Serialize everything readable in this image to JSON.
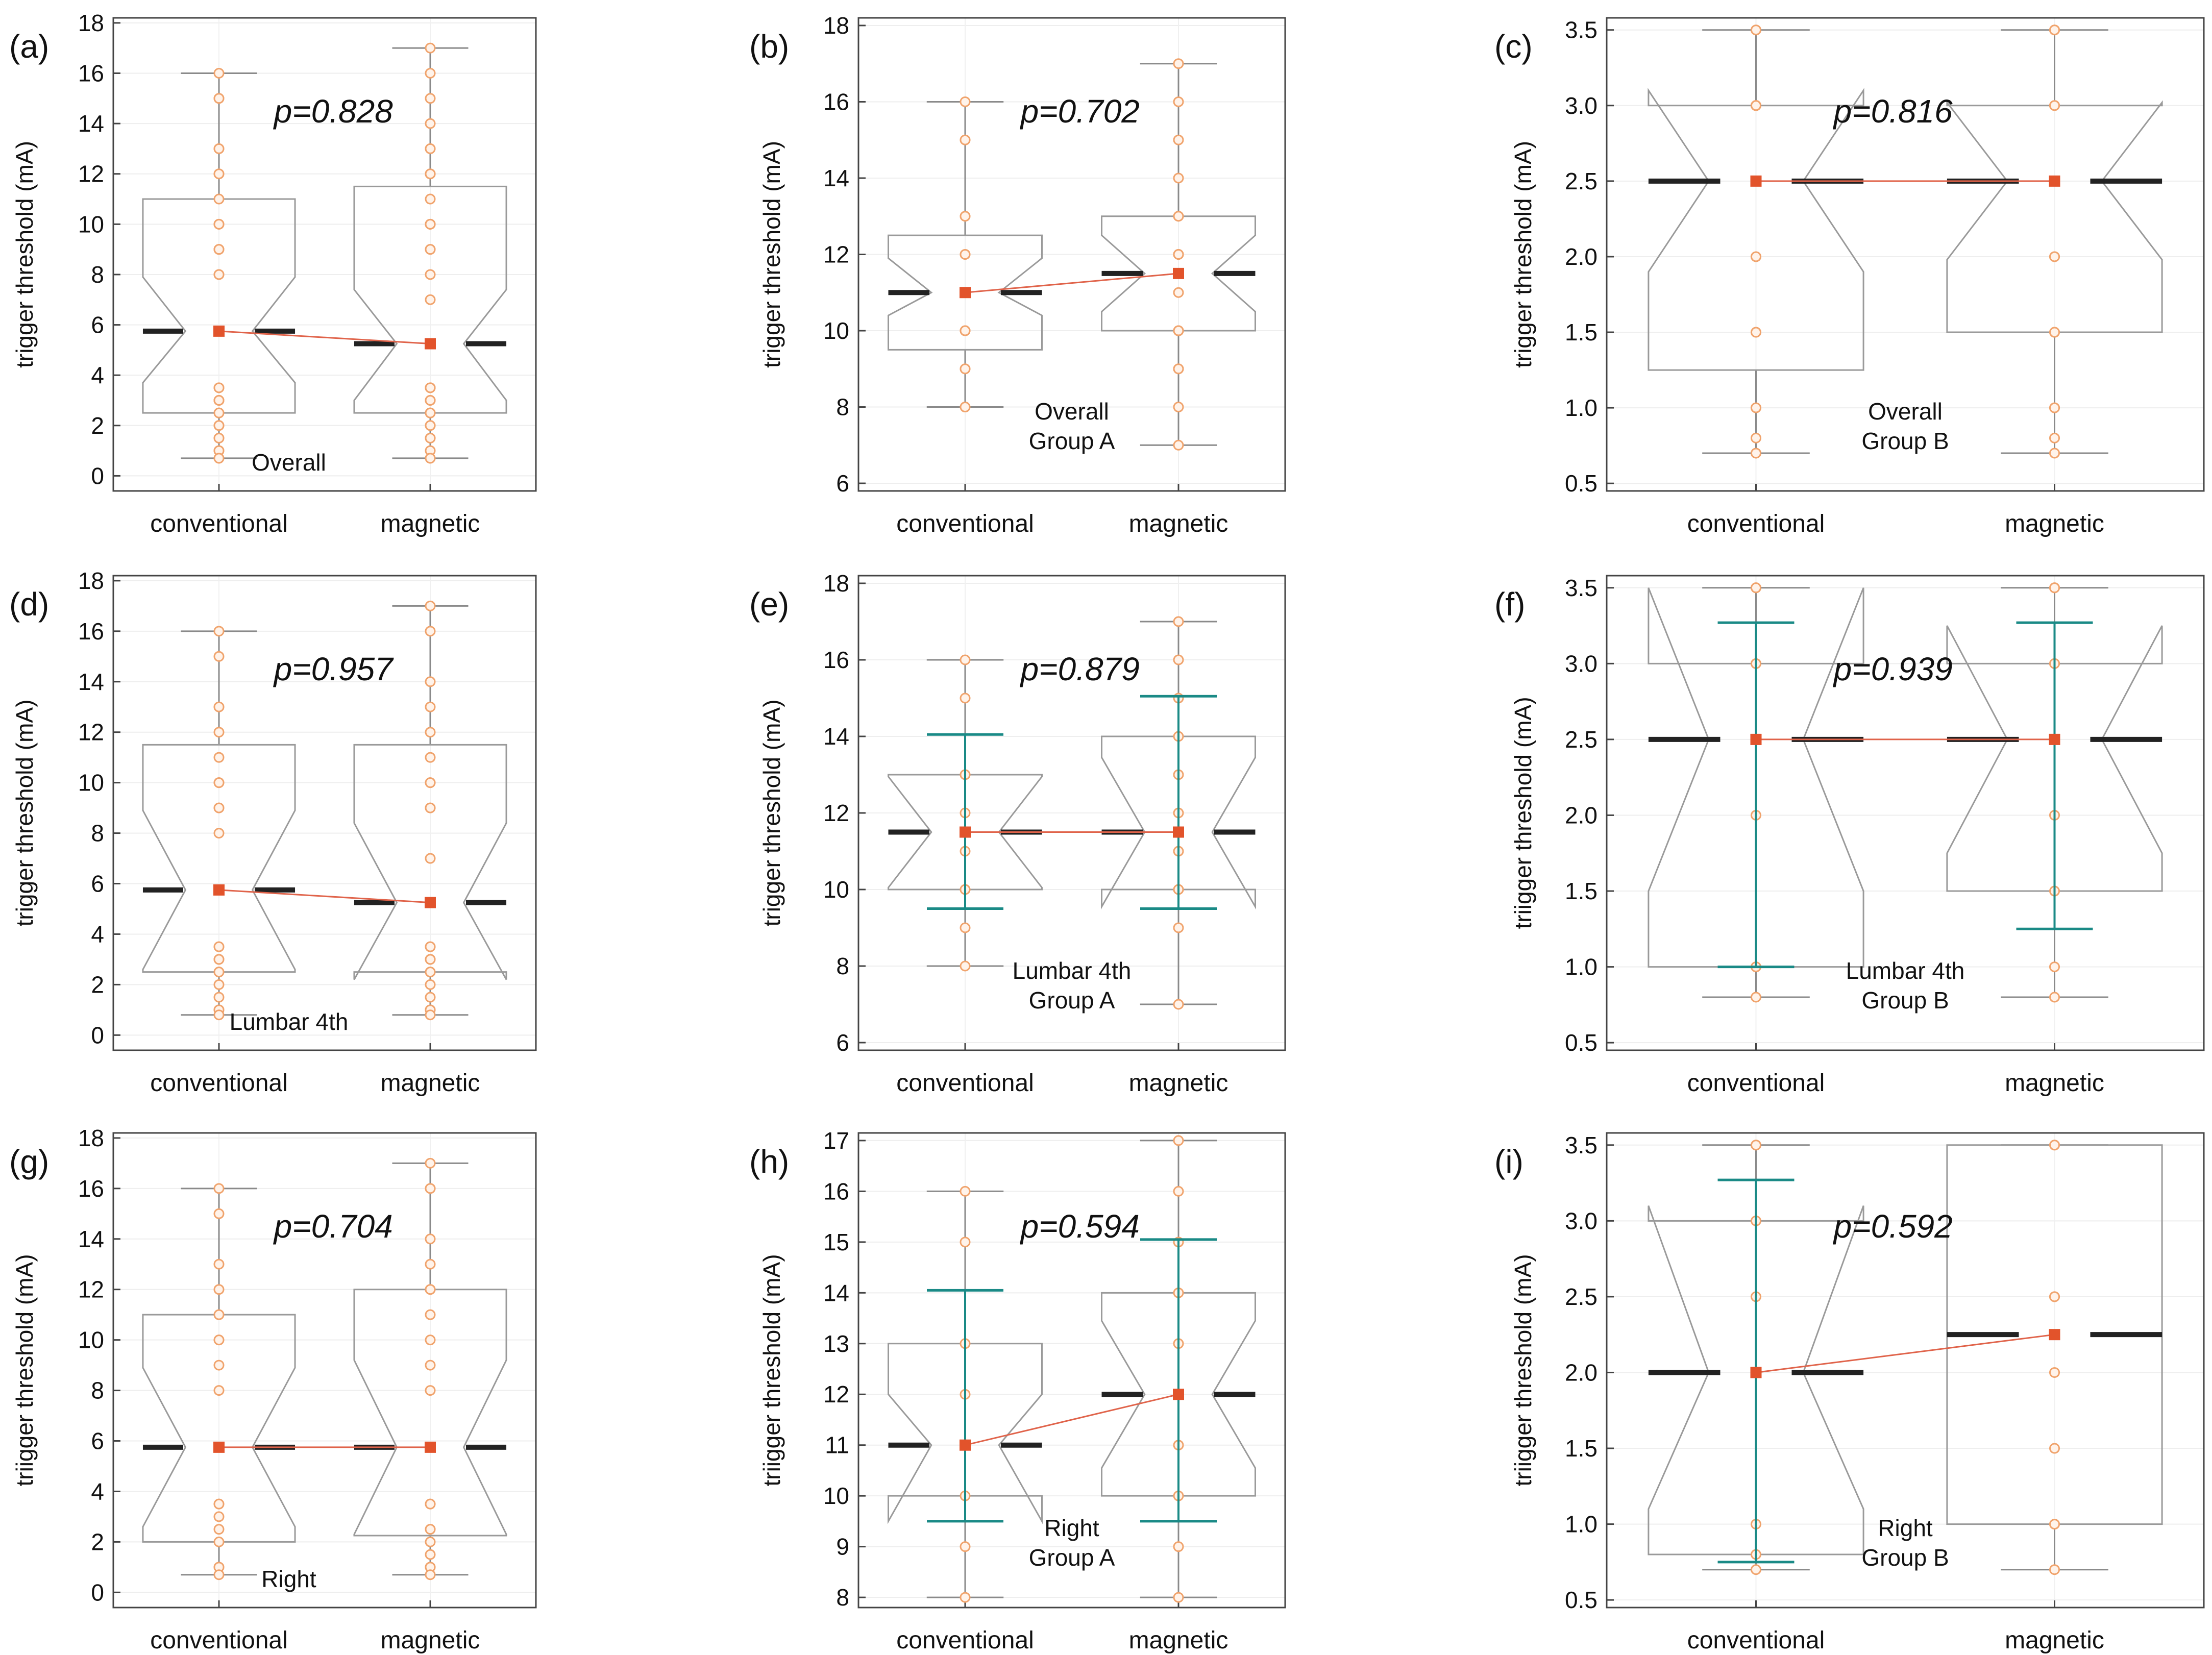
{
  "chart_data": [
    {
      "id": "a",
      "panel_label": "(a)",
      "type": "box",
      "categories": [
        "conventional",
        "magnetic"
      ],
      "ylabel": "trigger threshold (mA)",
      "ylim": [
        -0.6,
        18.2
      ],
      "yticks": [
        0,
        2,
        4,
        6,
        8,
        10,
        12,
        14,
        16,
        18
      ],
      "annotation": [
        "Overall"
      ],
      "p_value": "p=0.828",
      "series": [
        {
          "name": "conventional",
          "min": 0.7,
          "q1": 2.5,
          "median": 5.75,
          "q3": 11,
          "max": 16,
          "notch": [
            3.7,
            7.9
          ],
          "ci": null,
          "points": [
            16,
            15,
            15,
            13,
            13,
            12,
            12,
            11,
            10,
            10,
            10,
            9,
            9,
            9,
            8,
            8,
            3.5,
            3.5,
            3,
            3,
            3,
            3,
            2.5,
            2.5,
            2,
            2,
            1.5,
            1.5,
            1,
            1,
            0.7,
            0.7
          ]
        },
        {
          "name": "magnetic",
          "min": 0.7,
          "q1": 2.5,
          "median": 5.25,
          "q3": 11.5,
          "max": 17,
          "notch": [
            3.0,
            7.4
          ],
          "ci": null,
          "points": [
            17,
            16,
            15,
            14,
            13,
            13,
            12,
            12,
            12,
            11,
            10,
            10,
            10,
            10,
            9,
            9,
            8,
            7,
            3.5,
            3.5,
            3.5,
            3,
            3,
            3,
            2.5,
            2.5,
            2.5,
            2,
            2,
            1.5,
            1.5,
            1,
            0.7,
            0.7
          ]
        }
      ]
    },
    {
      "id": "b",
      "panel_label": "(b)",
      "type": "box",
      "categories": [
        "conventional",
        "magnetic"
      ],
      "ylabel": "trigger threshold (mA)",
      "ylim": [
        5.8,
        18.2
      ],
      "yticks": [
        6,
        8,
        10,
        12,
        14,
        16,
        18
      ],
      "annotation": [
        "Overall",
        "Group A"
      ],
      "p_value": "p=0.702",
      "series": [
        {
          "name": "conventional",
          "min": 8,
          "q1": 9.5,
          "median": 11,
          "q3": 12.5,
          "max": 16,
          "notch": [
            10.4,
            11.9
          ],
          "ci": null,
          "points": [
            16,
            15,
            15,
            13,
            13,
            12,
            12,
            11,
            10,
            10,
            10,
            10,
            9,
            9,
            8,
            8
          ]
        },
        {
          "name": "magnetic",
          "min": 7,
          "q1": 10,
          "median": 11.5,
          "q3": 13,
          "max": 17,
          "notch": [
            10.5,
            12.5
          ],
          "ci": null,
          "points": [
            17,
            16,
            15,
            14,
            13,
            13,
            12,
            12,
            12,
            11,
            10,
            10,
            10,
            10,
            9,
            9,
            8,
            7
          ]
        }
      ]
    },
    {
      "id": "c",
      "panel_label": "(c)",
      "type": "box",
      "categories": [
        "conventional",
        "magnetic"
      ],
      "ylabel": "trigger threshold (mA)",
      "ylim": [
        0.45,
        3.58
      ],
      "yticks": [
        0.5,
        1.0,
        1.5,
        2.0,
        2.5,
        3.0,
        3.5
      ],
      "annotation": [
        "Overall",
        "Group B"
      ],
      "p_value": "p=0.816",
      "series": [
        {
          "name": "conventional",
          "min": 0.7,
          "q1": 1.25,
          "median": 2.5,
          "q3": 3.0,
          "max": 3.5,
          "notch": [
            1.9,
            3.1
          ],
          "ci": null,
          "points": [
            3.5,
            3.5,
            3,
            3,
            3,
            3,
            3,
            3,
            2.5,
            2.5,
            2,
            2,
            1.5,
            1.5,
            1,
            1,
            0.8,
            0.7,
            0.7
          ]
        },
        {
          "name": "magnetic",
          "min": 0.7,
          "q1": 1.5,
          "median": 2.5,
          "q3": 3.0,
          "max": 3.5,
          "notch": [
            1.98,
            3.02
          ],
          "ci": null,
          "points": [
            3.5,
            3.5,
            3.5,
            3,
            3,
            3,
            2.5,
            2.5,
            2.5,
            2,
            2,
            1.5,
            1.5,
            1,
            1,
            0.8,
            0.7
          ]
        }
      ]
    },
    {
      "id": "d",
      "panel_label": "(d)",
      "type": "box",
      "categories": [
        "conventional",
        "magnetic"
      ],
      "ylabel": "trigger threshold (mA)",
      "ylim": [
        -0.6,
        18.2
      ],
      "yticks": [
        0,
        2,
        4,
        6,
        8,
        10,
        12,
        14,
        16,
        18
      ],
      "annotation": [
        "Lumbar 4th"
      ],
      "p_value": "p=0.957",
      "series": [
        {
          "name": "conventional",
          "min": 0.8,
          "q1": 2.5,
          "median": 5.75,
          "q3": 11.5,
          "max": 16,
          "notch": [
            2.6,
            8.9
          ],
          "ci": null,
          "points": [
            16,
            15,
            13,
            13,
            12,
            11,
            10,
            10,
            9,
            9,
            8,
            3.5,
            3.5,
            3,
            3,
            2.5,
            2.5,
            2,
            1.5,
            1,
            1,
            0.8
          ]
        },
        {
          "name": "magnetic",
          "min": 0.8,
          "q1": 2.5,
          "median": 5.25,
          "q3": 11.5,
          "max": 17,
          "notch": [
            2.2,
            8.4
          ],
          "ci": null,
          "points": [
            17,
            16,
            14,
            13,
            12,
            11,
            10,
            10,
            9,
            9,
            7,
            3.5,
            3.5,
            3,
            3,
            2.5,
            2.5,
            2,
            1.5,
            1,
            1,
            0.8
          ]
        }
      ]
    },
    {
      "id": "e",
      "panel_label": "(e)",
      "type": "box",
      "categories": [
        "conventional",
        "magnetic"
      ],
      "ylabel": "trigger threshold (mA)",
      "ylim": [
        5.8,
        18.2
      ],
      "yticks": [
        6,
        8,
        10,
        12,
        14,
        16,
        18
      ],
      "annotation": [
        "Lumbar 4th",
        "Group A"
      ],
      "p_value": "p=0.879",
      "series": [
        {
          "name": "conventional",
          "min": 8,
          "q1": 10,
          "median": 11.5,
          "q3": 13,
          "max": 16,
          "notch": [
            10.05,
            12.95
          ],
          "ci": [
            9.5,
            14.05
          ],
          "points": [
            16,
            15,
            13,
            13,
            12,
            11.5,
            11,
            10,
            10,
            9,
            8
          ]
        },
        {
          "name": "magnetic",
          "min": 7,
          "q1": 10,
          "median": 11.5,
          "q3": 14,
          "max": 17,
          "notch": [
            9.55,
            13.45
          ],
          "ci": [
            9.5,
            15.05
          ],
          "points": [
            17,
            16,
            15,
            14,
            13,
            12,
            11.5,
            11,
            10,
            10,
            9,
            7
          ]
        }
      ]
    },
    {
      "id": "f",
      "panel_label": "(f)",
      "type": "box",
      "categories": [
        "conventional",
        "magnetic"
      ],
      "ylabel": "triigger threshold (mA)",
      "ylim": [
        0.45,
        3.58
      ],
      "yticks": [
        0.5,
        1.0,
        1.5,
        2.0,
        2.5,
        3.0,
        3.5
      ],
      "annotation": [
        "Lumbar 4th",
        "Group B"
      ],
      "p_value": "p=0.939",
      "series": [
        {
          "name": "conventional",
          "min": 0.8,
          "q1": 1.0,
          "median": 2.5,
          "q3": 3.0,
          "max": 3.5,
          "notch": [
            1.5,
            3.5
          ],
          "ci": [
            1.0,
            3.27
          ],
          "points": [
            3.5,
            3.5,
            3,
            3,
            2.5,
            2,
            1,
            1,
            0.8
          ]
        },
        {
          "name": "magnetic",
          "min": 0.8,
          "q1": 1.5,
          "median": 2.5,
          "q3": 3.0,
          "max": 3.5,
          "notch": [
            1.75,
            3.25
          ],
          "ci": [
            1.25,
            3.27
          ],
          "points": [
            3.5,
            3.5,
            3,
            3,
            2.5,
            2,
            1.5,
            1,
            0.8
          ]
        }
      ]
    },
    {
      "id": "g",
      "panel_label": "(g)",
      "type": "box",
      "categories": [
        "conventional",
        "magnetic"
      ],
      "ylabel": "triigger threshold (mA)",
      "ylim": [
        -0.6,
        18.2
      ],
      "yticks": [
        0,
        2,
        4,
        6,
        8,
        10,
        12,
        14,
        16,
        18
      ],
      "annotation": [
        "Right"
      ],
      "p_value": "p=0.704",
      "series": [
        {
          "name": "conventional",
          "min": 0.7,
          "q1": 2.0,
          "median": 5.75,
          "q3": 11,
          "max": 16,
          "notch": [
            2.6,
            8.9
          ],
          "ci": null,
          "points": [
            16,
            15,
            13,
            12,
            11,
            11,
            10,
            10,
            9,
            8,
            3.5,
            3.5,
            3,
            2.5,
            2,
            1,
            1,
            0.7
          ]
        },
        {
          "name": "magnetic",
          "min": 0.7,
          "q1": 2.25,
          "median": 5.75,
          "q3": 12,
          "max": 17,
          "notch": [
            2.3,
            9.2
          ],
          "ci": null,
          "points": [
            17,
            16,
            16,
            14,
            13,
            12,
            12,
            11,
            10,
            9,
            8,
            3.5,
            3.5,
            2.5,
            2.5,
            2,
            1.5,
            1,
            1,
            0.7
          ]
        }
      ]
    },
    {
      "id": "h",
      "panel_label": "(h)",
      "type": "box",
      "categories": [
        "conventional",
        "magnetic"
      ],
      "ylabel": "triigger threshold (mA)",
      "ylim": [
        7.8,
        17.15
      ],
      "yticks": [
        8,
        9,
        10,
        11,
        12,
        13,
        14,
        15,
        16,
        17
      ],
      "annotation": [
        "Right",
        "Group A"
      ],
      "p_value": "p=0.594",
      "series": [
        {
          "name": "conventional",
          "min": 8,
          "q1": 10,
          "median": 11,
          "q3": 13,
          "max": 16,
          "notch": [
            9.5,
            12.0
          ],
          "ci": [
            9.5,
            14.05
          ],
          "points": [
            16,
            15,
            13,
            12,
            11,
            10,
            9,
            8
          ]
        },
        {
          "name": "magnetic",
          "min": 8,
          "q1": 10,
          "median": 12,
          "q3": 14,
          "max": 17,
          "notch": [
            10.55,
            13.45
          ],
          "ci": [
            9.5,
            15.05
          ],
          "points": [
            17,
            16,
            15,
            14,
            13,
            12,
            11,
            10,
            9,
            8
          ]
        }
      ]
    },
    {
      "id": "i",
      "panel_label": "(i)",
      "type": "box",
      "categories": [
        "conventional",
        "magnetic"
      ],
      "ylabel": "triigger threshold (mA)",
      "ylim": [
        0.45,
        3.58
      ],
      "yticks": [
        0.5,
        1.0,
        1.5,
        2.0,
        2.5,
        3.0,
        3.5
      ],
      "annotation": [
        "Right",
        "Group B"
      ],
      "p_value": "p=0.592",
      "series": [
        {
          "name": "conventional",
          "min": 0.7,
          "q1": 0.8,
          "median": 2.0,
          "q3": 3.0,
          "max": 3.5,
          "notch": [
            1.1,
            3.1
          ],
          "ci": [
            0.75,
            3.27
          ],
          "points": [
            3.5,
            3.5,
            3,
            2.5,
            2,
            1,
            0.8,
            0.7
          ]
        },
        {
          "name": "magnetic",
          "min": 0.7,
          "q1": 1.0,
          "median": 2.25,
          "q3": 3.5,
          "max": 3.5,
          "notch": [
            2.25,
            2.25
          ],
          "ci": null,
          "points": [
            3.5,
            3.5,
            2.5,
            2.5,
            2,
            1.5,
            1,
            1,
            0.7
          ]
        }
      ]
    }
  ],
  "colors": {
    "box_stroke": "#9a9a9a",
    "whisker": "#8a8a8a",
    "median": "#222222",
    "points": "#f0a36c",
    "point_fill": "#fff3ea",
    "mean": "#e2532b",
    "mean_line": "#e0634a",
    "ci": "#1a8a86",
    "axis": "#444444"
  }
}
